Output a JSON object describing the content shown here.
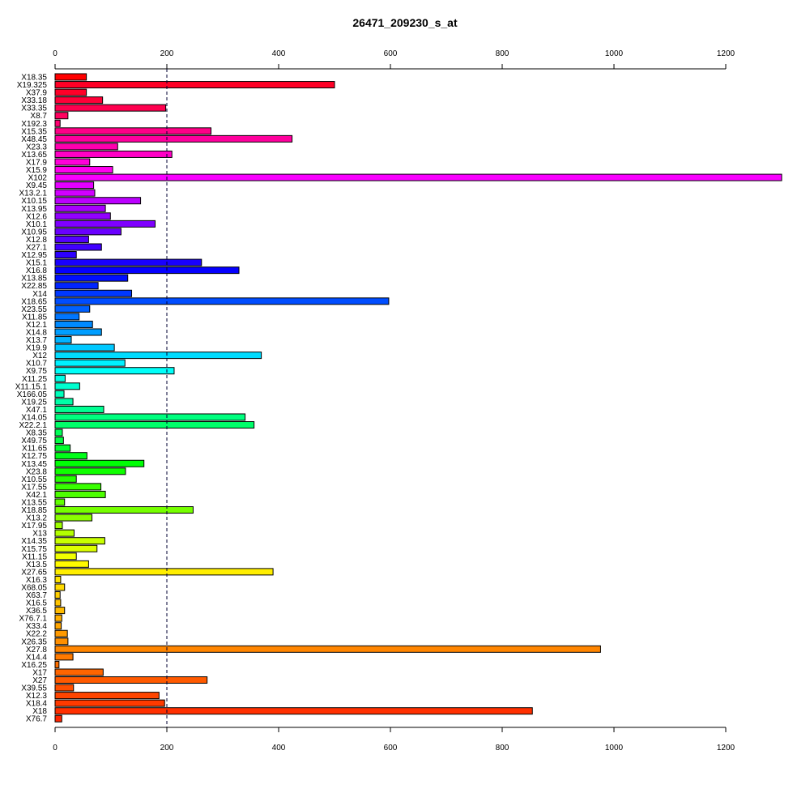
{
  "chart_data": {
    "type": "bar",
    "orientation": "horizontal",
    "title": "26471_209230_s_at",
    "xlim": [
      0,
      1300
    ],
    "ticks": [
      0,
      200,
      400,
      600,
      800,
      1000,
      1200
    ],
    "tick_labels": [
      "0",
      "200",
      "400",
      "600",
      "800",
      "1000",
      "1200"
    ],
    "reference_line": 200,
    "grid": false,
    "axes": "top and bottom",
    "categories": [
      "X18.35",
      "X19.325",
      "X37.9",
      "X33.18",
      "X33.35",
      "X8.7",
      "X192.3",
      "X15.35",
      "X48.45",
      "X23.3",
      "X13.65",
      "X17.9",
      "X15.9",
      "X102",
      "X9.45",
      "X13.2.1",
      "X10.15",
      "X13.95",
      "X12.6",
      "X10.1",
      "X10.95",
      "X12.8",
      "X27.1",
      "X12.95",
      "X15.1",
      "X16.8",
      "X13.85",
      "X22.85",
      "X14",
      "X18.65",
      "X23.55",
      "X11.85",
      "X12.1",
      "X14.8",
      "X13.7",
      "X19.9",
      "X12",
      "X10.7",
      "X9.75",
      "X11.25",
      "X11.15.1",
      "X166.05",
      "X19.25",
      "X47.1",
      "X14.05",
      "X22.2.1",
      "X8.35",
      "X49.75",
      "X11.65",
      "X12.75",
      "X13.45",
      "X23.8",
      "X10.55",
      "X17.55",
      "X42.1",
      "X13.55",
      "X18.85",
      "X13.2",
      "X17.95",
      "X13",
      "X14.35",
      "X15.75",
      "X11.15",
      "X13.5",
      "X27.65",
      "X16.3",
      "X68.05",
      "X63.7",
      "X16.5",
      "X36.5",
      "X76.7.1",
      "X33.4",
      "X22.2",
      "X26.35",
      "X27.8",
      "X14.4",
      "X16.25",
      "X17",
      "X27",
      "X39.55",
      "X12.3",
      "X18.4",
      "X18",
      "X76.7"
    ],
    "values": [
      56,
      500,
      56,
      85,
      198,
      23,
      9,
      279,
      424,
      112,
      209,
      62,
      103,
      1309,
      69,
      71,
      153,
      90,
      99,
      179,
      118,
      60,
      83,
      38,
      262,
      329,
      130,
      77,
      137,
      597,
      62,
      43,
      67,
      83,
      29,
      106,
      369,
      125,
      213,
      18,
      44,
      16,
      32,
      87,
      340,
      356,
      13,
      15,
      27,
      57,
      159,
      126,
      38,
      82,
      90,
      17,
      247,
      66,
      13,
      34,
      89,
      75,
      38,
      60,
      390,
      10,
      17,
      9,
      10,
      17,
      12,
      11,
      22,
      23,
      976,
      32,
      7,
      86,
      272,
      33,
      186,
      196,
      854,
      12
    ],
    "colors": [
      "#FF0000",
      "#FF0026",
      "#FF0028",
      "#FF0038",
      "#FF004F",
      "#FF005F",
      "#FF0072",
      "#FF0087",
      "#FF009D",
      "#FF00AF",
      "#FF00C5",
      "#FF00DA",
      "#FF00EF",
      "#F900FF",
      "#E500FF",
      "#D000FF",
      "#BB00FF",
      "#A700FF",
      "#9200FF",
      "#7F00FF",
      "#6A00FF",
      "#5600FF",
      "#4100FF",
      "#2D00FF",
      "#1900FF",
      "#0500FF",
      "#000FFF",
      "#0024FF",
      "#0038FF",
      "#004DFF",
      "#0061FF",
      "#0076FF",
      "#008AFF",
      "#009EFF",
      "#00B3FF",
      "#00C8FF",
      "#00DCFF",
      "#00F1FF",
      "#00FFF9",
      "#00FFE5",
      "#00FFD0",
      "#00FFBB",
      "#00FFA7",
      "#00FF92",
      "#00FF7F",
      "#00FF6A",
      "#00FF56",
      "#00FF41",
      "#00FF2D",
      "#00FF19",
      "#00FF05",
      "#0FFF00",
      "#24FF00",
      "#38FF00",
      "#4DFF00",
      "#61FF00",
      "#76FF00",
      "#8AFF00",
      "#9EFF00",
      "#B3FF00",
      "#C8FF00",
      "#DCFF00",
      "#F1FF00",
      "#FFFA00",
      "#FFEE00",
      "#FFE400",
      "#FFDA00",
      "#FFCF00",
      "#FFC500",
      "#FFBB00",
      "#FFAF00",
      "#FFA500",
      "#FF9A00",
      "#FF8F00",
      "#FF8500",
      "#FF7A00",
      "#FF6F00",
      "#FF6500",
      "#FF5A00",
      "#FF4F00",
      "#FF4500",
      "#FF3A00",
      "#FF2F00",
      "#FF2500"
    ]
  }
}
